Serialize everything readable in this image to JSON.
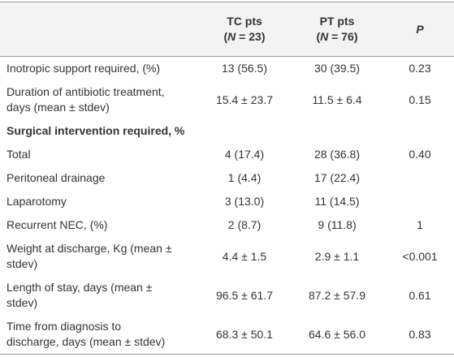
{
  "header": {
    "columns": [
      {
        "title": "TC pts",
        "n": [
          "(",
          "N",
          " = 23)"
        ]
      },
      {
        "title": "PT pts",
        "n": [
          "(",
          "N",
          " = 76)"
        ]
      }
    ],
    "p": "P"
  },
  "rows": [
    {
      "label": [
        "Inotropic support required, (%)"
      ],
      "values": [
        "13 (56.5)",
        "30 (39.5)",
        "0.23"
      ]
    },
    {
      "label": [
        "Duration of antibiotic treatment,",
        "days (mean ± stdev)"
      ],
      "values": [
        "15.4 ± 23.7",
        "11.5 ± 6.4",
        "0.15"
      ]
    },
    {
      "section": "Surgical intervention required, %"
    },
    {
      "label": [
        "Total"
      ],
      "values": [
        "4 (17.4)",
        "28 (36.8)",
        "0.40"
      ]
    },
    {
      "label": [
        "Peritoneal drainage"
      ],
      "values": [
        "1 (4.4)",
        "17 (22.4)"
      ]
    },
    {
      "label": [
        "Laparotomy"
      ],
      "values": [
        "3 (13.0)",
        "11 (14.5)"
      ]
    },
    {
      "label": [
        "Recurrent NEC, (%)"
      ],
      "values": [
        "2 (8.7)",
        "9 (11.8)",
        "1"
      ]
    },
    {
      "label": [
        "Weight at discharge, Kg (mean ±",
        "stdev)"
      ],
      "values": [
        "4.4 ± 1.5",
        "2.9 ± 1.1",
        "<0.001"
      ]
    },
    {
      "label": [
        "Length of stay, days (mean ±",
        "stdev)"
      ],
      "values": [
        "96.5 ± 61.7",
        "87.2 ± 57.9",
        "0.61"
      ]
    },
    {
      "label": [
        "Time from diagnosis to",
        "discharge, days (mean ± stdev)"
      ],
      "values": [
        "68.3 ± 50.1",
        "64.6 ± 56.0",
        "0.83"
      ]
    }
  ]
}
